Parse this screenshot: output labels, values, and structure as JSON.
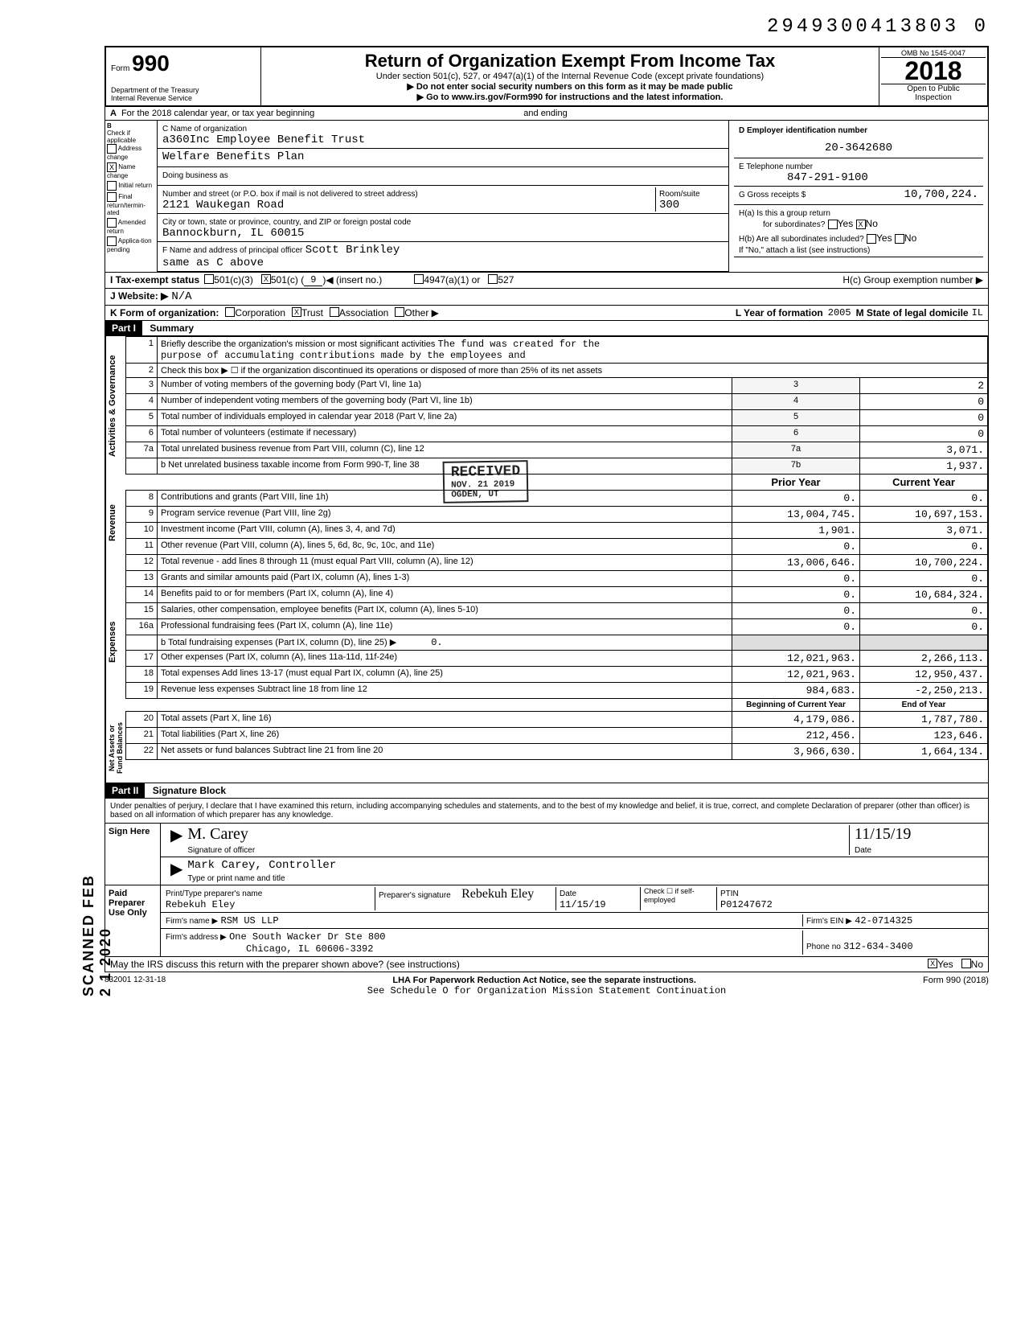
{
  "barcode_number": "2949300413803 0",
  "form": {
    "form_label": "Form",
    "form_number": "990",
    "dept": "Department of the Treasury",
    "irs": "Internal Revenue Service",
    "title": "Return of Organization Exempt From Income Tax",
    "subtitle": "Under section 501(c), 527, or 4947(a)(1) of the Internal Revenue Code (except private foundations)",
    "note1": "▶ Do not enter social security numbers on this form as it may be made public",
    "note2": "▶ Go to www.irs.gov/Form990 for instructions and the latest information.",
    "omb": "OMB No 1545-0047",
    "year": "2018",
    "open": "Open to Public",
    "inspection": "Inspection"
  },
  "row_a": {
    "label_a": "A",
    "text": "For the 2018 calendar year, or tax year beginning",
    "ending": "and ending"
  },
  "col_b": {
    "header": "B",
    "check_if": "Check if applicable",
    "items": [
      {
        "label": "Address change",
        "checked": false
      },
      {
        "label": "Name change",
        "checked": true
      },
      {
        "label": "Initial return",
        "checked": false
      },
      {
        "label": "Final return/termin-ated",
        "checked": false
      },
      {
        "label": "Amended return",
        "checked": false
      },
      {
        "label": "Applica-tion pending",
        "checked": false
      }
    ]
  },
  "col_c": {
    "header": "C Name of organization",
    "name_line1": "a360Inc Employee Benefit Trust",
    "name_line2": "Welfare Benefits Plan",
    "dba_label": "Doing business as",
    "dba": "",
    "addr_label": "Number and street (or P.O. box if mail is not delivered to street address)",
    "address": "2121 Waukegan Road",
    "room_label": "Room/suite",
    "room": "300",
    "city_label": "City or town, state or province, country, and ZIP or foreign postal code",
    "city": "Bannockburn, IL  60015",
    "f_label": "F Name and address of principal officer",
    "officer": "Scott Brinkley",
    "officer_addr": "same as C above"
  },
  "col_d": {
    "header": "D  Employer identification number",
    "ein": "20-3642680",
    "e_label": "E  Telephone number",
    "phone": "847-291-9100",
    "g_label": "G  Gross receipts $",
    "gross": "10,700,224.",
    "ha_label": "H(a) Is this a group return",
    "ha_for": "for subordinates?",
    "ha_yes": "Yes",
    "ha_no": "No",
    "ha_no_checked": true,
    "hb_label": "H(b) Are all subordinates included?",
    "hb_yes": "Yes",
    "hb_no": "No",
    "hb_note": "If \"No,\" attach a list (see instructions)",
    "hc_label": "H(c) Group exemption number ▶",
    "hc": ""
  },
  "row_i": {
    "label": "I  Tax-exempt status",
    "c3": "501(c)(3)",
    "c_checked": true,
    "c": "501(c) (",
    "c_num": "9",
    "c_insert": ")◀  (insert no.)",
    "a1": "4947(a)(1) or",
    "s527": "527"
  },
  "row_j": {
    "label": "J  Website: ▶",
    "value": "N/A"
  },
  "row_k": {
    "label": "K  Form of organization:",
    "corp": "Corporation",
    "trust": "Trust",
    "trust_checked": true,
    "assoc": "Association",
    "other": "Other ▶"
  },
  "row_l": {
    "label": "L Year of formation",
    "year": "2005",
    "state_label": "M State of legal domicile",
    "state": "IL"
  },
  "part1": {
    "header": "Part I",
    "title": "Summary",
    "gov_label": "Activities & Governance",
    "rev_label": "Revenue",
    "exp_label": "Expenses",
    "net_label": "Net Assets or Fund Balances",
    "line1_label": "Briefly describe the organization's mission or most significant activities",
    "line1_text": "The fund was created for the",
    "line1_text2": "purpose of accumulating contributions made by the employees and",
    "line2": "Check this box ▶ ☐ if the organization discontinued its operations or disposed of more than 25% of its net assets",
    "prior_year": "Prior Year",
    "current_year": "Current Year",
    "bcy": "Beginning of Current Year",
    "eoy": "End of Year",
    "rows": [
      {
        "n": "3",
        "desc": "Number of voting members of the governing body (Part VI, line 1a)",
        "box": "3",
        "val": "2"
      },
      {
        "n": "4",
        "desc": "Number of independent voting members of the governing body (Part VI, line 1b)",
        "box": "4",
        "val": "0"
      },
      {
        "n": "5",
        "desc": "Total number of individuals employed in calendar year 2018 (Part V, line 2a)",
        "box": "5",
        "val": "0"
      },
      {
        "n": "6",
        "desc": "Total number of volunteers (estimate if necessary)",
        "box": "6",
        "val": "0"
      },
      {
        "n": "7a",
        "desc": "Total unrelated business revenue from Part VIII, column (C), line 12",
        "box": "7a",
        "val": "3,071."
      },
      {
        "n": "",
        "desc": "b Net unrelated business taxable income from Form 990-T, line 38",
        "box": "7b",
        "val": "1,937."
      }
    ],
    "rev_rows": [
      {
        "n": "8",
        "desc": "Contributions and grants (Part VIII, line 1h)",
        "py": "0.",
        "cy": "0."
      },
      {
        "n": "9",
        "desc": "Program service revenue (Part VIII, line 2g)",
        "py": "13,004,745.",
        "cy": "10,697,153."
      },
      {
        "n": "10",
        "desc": "Investment income (Part VIII, column (A), lines 3, 4, and 7d)",
        "py": "1,901.",
        "cy": "3,071."
      },
      {
        "n": "11",
        "desc": "Other revenue (Part VIII, column (A), lines 5, 6d, 8c, 9c, 10c, and 11e)",
        "py": "0.",
        "cy": "0."
      },
      {
        "n": "12",
        "desc": "Total revenue - add lines 8 through 11 (must equal Part VIII, column (A), line 12)",
        "py": "13,006,646.",
        "cy": "10,700,224."
      }
    ],
    "exp_rows": [
      {
        "n": "13",
        "desc": "Grants and similar amounts paid (Part IX, column (A), lines 1-3)",
        "py": "0.",
        "cy": "0."
      },
      {
        "n": "14",
        "desc": "Benefits paid to or for members (Part IX, column (A), line 4)",
        "py": "0.",
        "cy": "10,684,324."
      },
      {
        "n": "15",
        "desc": "Salaries, other compensation, employee benefits (Part IX, column (A), lines 5-10)",
        "py": "0.",
        "cy": "0."
      },
      {
        "n": "16a",
        "desc": "Professional fundraising fees (Part IX, column (A), line 11e)",
        "py": "0.",
        "cy": "0."
      },
      {
        "n": "",
        "desc": "b Total fundraising expenses (Part IX, column (D), line 25)  ▶",
        "extra": "0.",
        "py": "",
        "cy": ""
      },
      {
        "n": "17",
        "desc": "Other expenses (Part IX, column (A), lines 11a-11d, 11f-24e)",
        "py": "12,021,963.",
        "cy": "2,266,113."
      },
      {
        "n": "18",
        "desc": "Total expenses Add lines 13-17 (must equal Part IX, column (A), line 25)",
        "py": "12,021,963.",
        "cy": "12,950,437."
      },
      {
        "n": "19",
        "desc": "Revenue less expenses Subtract line 18 from line 12",
        "py": "984,683.",
        "cy": "-2,250,213."
      }
    ],
    "net_rows": [
      {
        "n": "20",
        "desc": "Total assets (Part X, line 16)",
        "py": "4,179,086.",
        "cy": "1,787,780."
      },
      {
        "n": "21",
        "desc": "Total liabilities (Part X, line 26)",
        "py": "212,456.",
        "cy": "123,646."
      },
      {
        "n": "22",
        "desc": "Net assets or fund balances Subtract line 21 from line 20",
        "py": "3,966,630.",
        "cy": "1,664,134."
      }
    ]
  },
  "stamp": {
    "received": "RECEIVED",
    "date": "NOV. 21 2019",
    "org": "OGDEN, UT"
  },
  "part2": {
    "header": "Part II",
    "title": "Signature Block",
    "penalty": "Under penalties of perjury, I declare that I have examined this return, including accompanying schedules and statements, and to the best of my knowledge and belief, it is true, correct, and complete  Declaration of preparer (other than officer) is based on all information of which preparer has any knowledge.",
    "sign_here": "Sign Here",
    "sig_label": "Signature of officer",
    "date_label": "Date",
    "date": "11/15/19",
    "name": "Mark Carey, Controller",
    "name_label": "Type or print name and title",
    "paid": "Paid Preparer Use Only",
    "prep_name_label": "Print/Type preparer's name",
    "prep_name": "Rebekuh Eley",
    "prep_sig_label": "Preparer's signature",
    "prep_sig": "Rebekuh Eley",
    "prep_date": "11/15/19",
    "self_emp": "Check ☐ if self-employed",
    "ptin_label": "PTIN",
    "ptin": "P01247672",
    "firm_name_label": "Firm's name ▶",
    "firm_name": "RSM US LLP",
    "firm_ein_label": "Firm's EIN ▶",
    "firm_ein": "42-0714325",
    "firm_addr_label": "Firm's address ▶",
    "firm_addr1": "One South Wacker Dr Ste 800",
    "firm_addr2": "Chicago, IL 60606-3392",
    "phone_label": "Phone no",
    "firm_phone": "312-634-3400",
    "may_discuss": "May the IRS discuss this return with the preparer shown above? (see instructions)",
    "yes": "Yes",
    "no": "No",
    "yes_checked": true
  },
  "footer": {
    "code": "832001 12-31-18",
    "lha": "LHA  For Paperwork Reduction Act Notice, see the separate instructions.",
    "form": "Form 990 (2018)",
    "schedule": "See Schedule O for Organization Mission Statement Continuation"
  },
  "side_stamp": "SCANNED FEB 2 1 2020"
}
